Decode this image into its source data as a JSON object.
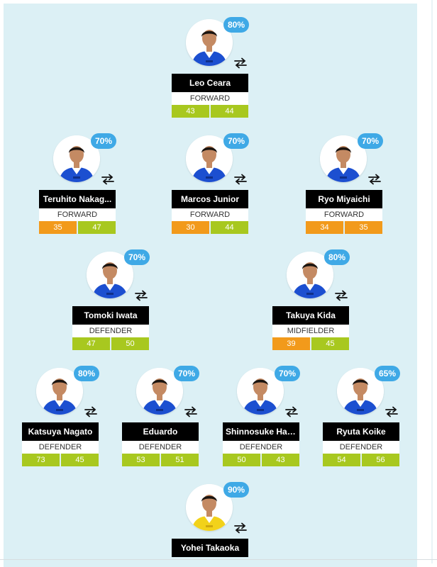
{
  "colors": {
    "pitch": "#dcf0f5",
    "badge": "#3fa9e6",
    "stat_green": "#a8c81f",
    "stat_orange": "#f29a1b",
    "name_bg": "#000000"
  },
  "players": [
    {
      "id": "leo-ceara",
      "name": "Leo Ceara",
      "position": "FORWARD",
      "rating": "80%",
      "stat1": "43",
      "stat2": "44",
      "stat1_color": "green",
      "stat2_color": "green",
      "kit": "home"
    },
    {
      "id": "teruhito-nakagawa",
      "name": "Teruhito Nakag...",
      "position": "FORWARD",
      "rating": "70%",
      "stat1": "35",
      "stat2": "47",
      "stat1_color": "orange",
      "stat2_color": "green",
      "kit": "home"
    },
    {
      "id": "marcos-junior",
      "name": "Marcos Junior",
      "position": "FORWARD",
      "rating": "70%",
      "stat1": "30",
      "stat2": "44",
      "stat1_color": "orange",
      "stat2_color": "green",
      "kit": "home"
    },
    {
      "id": "ryo-miyaichi",
      "name": "Ryo Miyaichi",
      "position": "FORWARD",
      "rating": "70%",
      "stat1": "34",
      "stat2": "35",
      "stat1_color": "orange",
      "stat2_color": "orange",
      "kit": "home"
    },
    {
      "id": "tomoki-iwata",
      "name": "Tomoki Iwata",
      "position": "DEFENDER",
      "rating": "70%",
      "stat1": "47",
      "stat2": "50",
      "stat1_color": "green",
      "stat2_color": "green",
      "kit": "home"
    },
    {
      "id": "takuya-kida",
      "name": "Takuya Kida",
      "position": "MIDFIELDER",
      "rating": "80%",
      "stat1": "39",
      "stat2": "45",
      "stat1_color": "orange",
      "stat2_color": "green",
      "kit": "home"
    },
    {
      "id": "katsuya-nagato",
      "name": "Katsuya Nagato",
      "position": "DEFENDER",
      "rating": "80%",
      "stat1": "73",
      "stat2": "45",
      "stat1_color": "green",
      "stat2_color": "green",
      "kit": "home"
    },
    {
      "id": "eduardo",
      "name": "Eduardo",
      "position": "DEFENDER",
      "rating": "70%",
      "stat1": "53",
      "stat2": "51",
      "stat1_color": "green",
      "stat2_color": "green",
      "kit": "home"
    },
    {
      "id": "shinnosuke-hatanaka",
      "name": "Shinnosuke Hat...",
      "position": "DEFENDER",
      "rating": "70%",
      "stat1": "50",
      "stat2": "43",
      "stat1_color": "green",
      "stat2_color": "green",
      "kit": "home"
    },
    {
      "id": "ryuta-koike",
      "name": "Ryuta Koike",
      "position": "DEFENDER",
      "rating": "65%",
      "stat1": "54",
      "stat2": "56",
      "stat1_color": "green",
      "stat2_color": "green",
      "kit": "home"
    },
    {
      "id": "yohei-takaoka",
      "name": "Yohei Takaoka",
      "position": "",
      "rating": "90%",
      "stat1": "",
      "stat2": "",
      "stat1_color": "green",
      "stat2_color": "green",
      "kit": "keeper"
    }
  ]
}
